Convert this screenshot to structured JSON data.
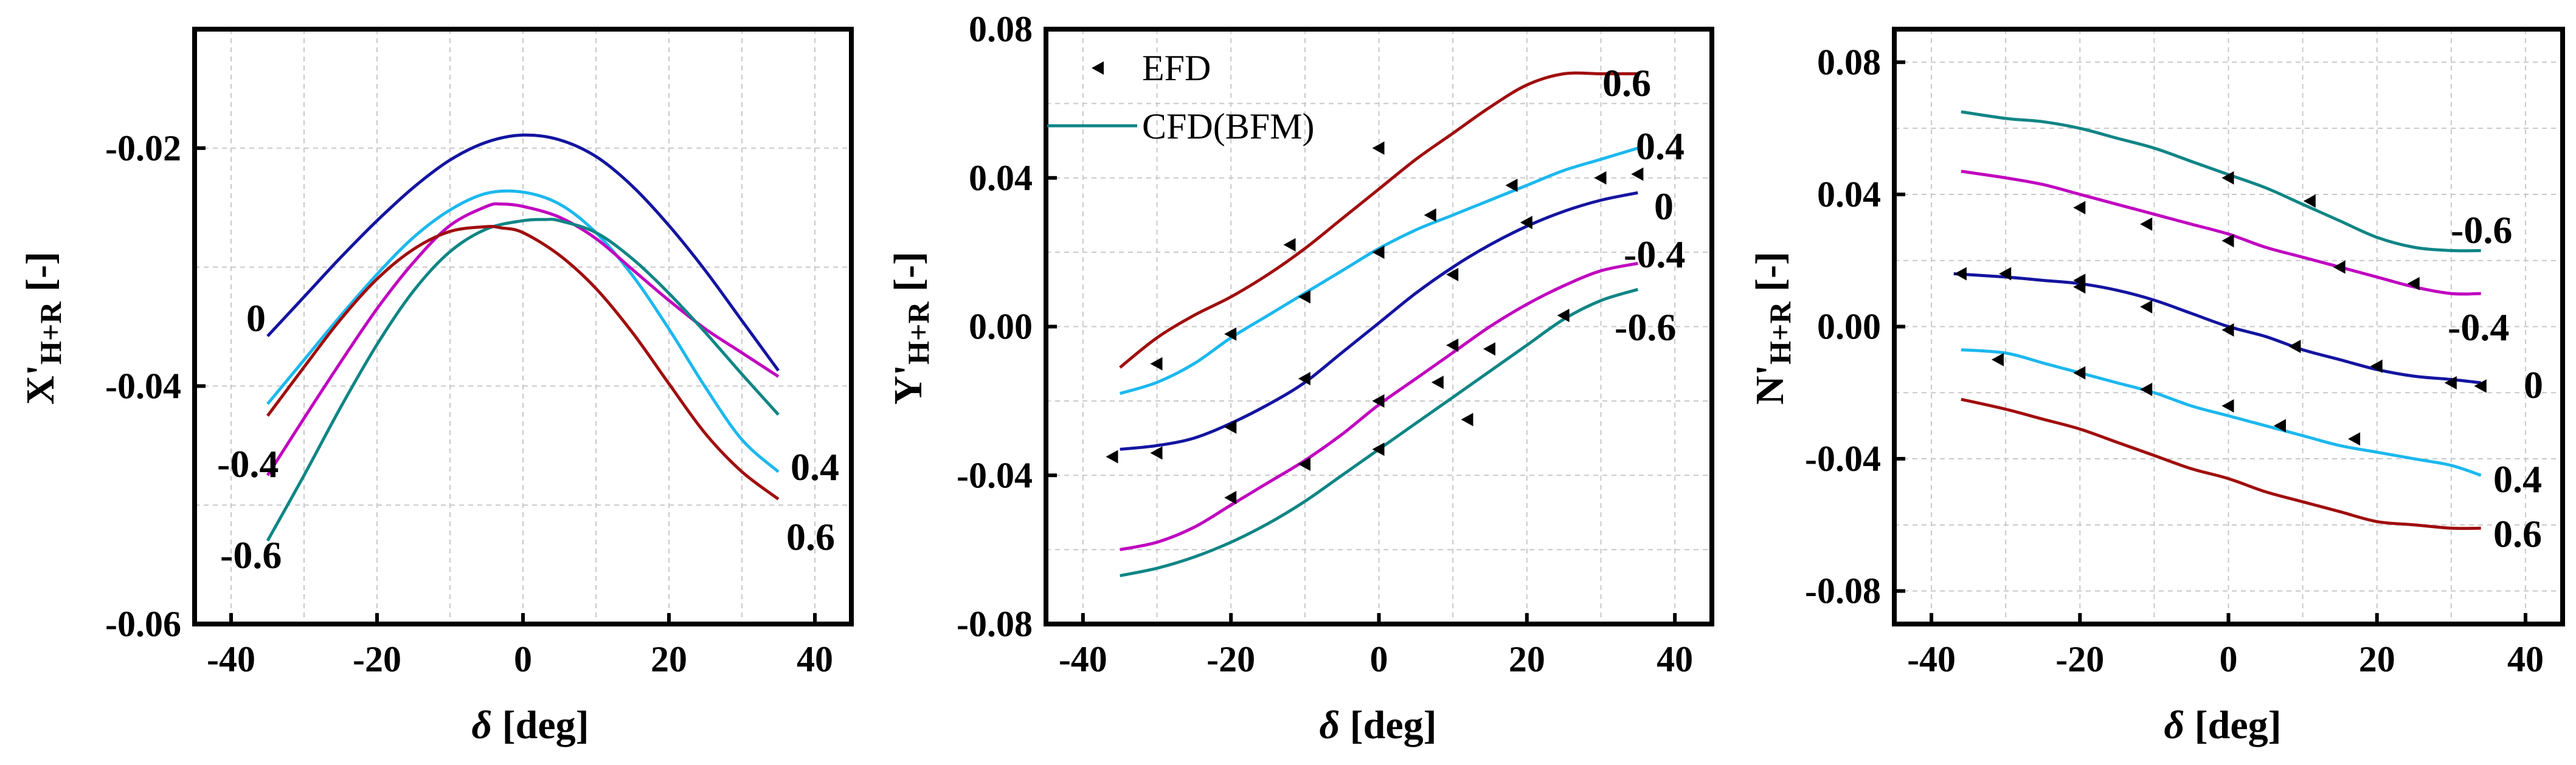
{
  "chart_data": [
    {
      "type": "line",
      "panel": "left",
      "ylabel_main": "X'",
      "ylabel_sub": "H+R",
      "ylabel_unit": " [-]",
      "xlabel_symbol": "δ",
      "xlabel_unit": " [deg]",
      "xlim": [
        -45,
        45
      ],
      "ylim": [
        -0.06,
        -0.01
      ],
      "xticks": [
        -40,
        -20,
        0,
        20,
        40
      ],
      "xtick_labels": [
        "-40",
        "-20",
        "0",
        "20",
        "40"
      ],
      "yticks": [
        -0.06,
        -0.04,
        -0.02
      ],
      "ytick_labels": [
        "-0.06",
        "-0.04",
        "-0.02"
      ],
      "series": [
        {
          "name": "0",
          "color": "#1414a0",
          "x": [
            -35,
            -30,
            -25,
            -20,
            -15,
            -10,
            -5,
            0,
            5,
            10,
            15,
            20,
            25,
            30,
            35
          ],
          "y": [
            -0.0358,
            -0.0325,
            -0.0292,
            -0.0261,
            -0.0233,
            -0.021,
            -0.0195,
            -0.0189,
            -0.0193,
            -0.0207,
            -0.0232,
            -0.0265,
            -0.0303,
            -0.0345,
            -0.0387
          ]
        },
        {
          "name": "0.4",
          "color": "#1cb8ee",
          "x": [
            -35,
            -30,
            -25,
            -20,
            -15,
            -10,
            -5,
            0,
            5,
            10,
            15,
            20,
            25,
            30,
            35
          ],
          "y": [
            -0.0415,
            -0.0378,
            -0.0341,
            -0.0306,
            -0.0275,
            -0.0252,
            -0.0238,
            -0.0237,
            -0.0247,
            -0.0271,
            -0.0307,
            -0.0352,
            -0.0401,
            -0.0445,
            -0.0472
          ]
        },
        {
          "name": "-0.4",
          "color": "#c000c0",
          "x": [
            -35,
            -30,
            -25,
            -20,
            -15,
            -10,
            -5,
            -3,
            0,
            5,
            10,
            15,
            20,
            25,
            30,
            35
          ],
          "y": [
            -0.0475,
            -0.0427,
            -0.038,
            -0.0335,
            -0.0296,
            -0.0265,
            -0.0249,
            -0.0247,
            -0.0249,
            -0.0258,
            -0.0276,
            -0.0302,
            -0.0328,
            -0.0352,
            -0.0372,
            -0.0392
          ]
        },
        {
          "name": "-0.6",
          "color": "#108585",
          "x": [
            -35,
            -30,
            -25,
            -20,
            -15,
            -10,
            -5,
            0,
            3,
            5,
            10,
            15,
            20,
            25,
            30,
            35
          ],
          "y": [
            -0.053,
            -0.0475,
            -0.0418,
            -0.0365,
            -0.032,
            -0.0287,
            -0.0268,
            -0.0261,
            -0.026,
            -0.0261,
            -0.0271,
            -0.0293,
            -0.0322,
            -0.0355,
            -0.039,
            -0.0424
          ]
        },
        {
          "name": "0.6",
          "color": "#a00e0e",
          "x": [
            -35,
            -30,
            -25,
            -20,
            -15,
            -10,
            -5,
            -3,
            0,
            5,
            10,
            15,
            20,
            25,
            30,
            35
          ],
          "y": [
            -0.0425,
            -0.0384,
            -0.0344,
            -0.031,
            -0.0285,
            -0.027,
            -0.0266,
            -0.0267,
            -0.0271,
            -0.029,
            -0.0318,
            -0.0355,
            -0.0398,
            -0.044,
            -0.0472,
            -0.0495
          ]
        }
      ],
      "annotations": [
        "0",
        "-0.4",
        "-0.6",
        "0.4",
        "0.6"
      ]
    },
    {
      "type": "line",
      "panel": "middle",
      "ylabel_main": "Y'",
      "ylabel_sub": "H+R",
      "ylabel_unit": " [-]",
      "xlabel_symbol": "δ",
      "xlabel_unit": " [deg]",
      "xlim": [
        -45,
        45
      ],
      "ylim": [
        -0.08,
        0.08
      ],
      "xticks": [
        -40,
        -20,
        0,
        20,
        40
      ],
      "xtick_labels": [
        "-40",
        "-20",
        "0",
        "20",
        "40"
      ],
      "yticks": [
        -0.08,
        -0.04,
        0.0,
        0.04,
        0.08
      ],
      "ytick_labels": [
        "-0.08",
        "-0.04",
        "0.00",
        "0.04",
        "0.08"
      ],
      "legend": {
        "location": "top-left",
        "entries": [
          "EFD",
          "CFD(BFM)"
        ]
      },
      "series": [
        {
          "name": "0.6",
          "color": "#a00e0e",
          "x": [
            -35,
            -30,
            -25,
            -20,
            -15,
            -10,
            -5,
            0,
            5,
            10,
            15,
            20,
            25,
            30,
            35
          ],
          "y": [
            -0.011,
            -0.003,
            0.003,
            0.008,
            0.014,
            0.021,
            0.029,
            0.037,
            0.045,
            0.052,
            0.059,
            0.065,
            0.068,
            0.068,
            0.068
          ]
        },
        {
          "name": "0.4",
          "color": "#1cb8ee",
          "x": [
            -35,
            -30,
            -25,
            -20,
            -15,
            -10,
            -5,
            0,
            5,
            10,
            15,
            20,
            25,
            30,
            35
          ],
          "y": [
            -0.018,
            -0.015,
            -0.01,
            -0.003,
            0.003,
            0.009,
            0.015,
            0.021,
            0.026,
            0.03,
            0.034,
            0.038,
            0.042,
            0.045,
            0.048
          ]
        },
        {
          "name": "0",
          "color": "#1414a0",
          "x": [
            -35,
            -30,
            -25,
            -20,
            -15,
            -10,
            -5,
            0,
            5,
            10,
            15,
            20,
            25,
            30,
            35
          ],
          "y": [
            -0.033,
            -0.032,
            -0.03,
            -0.026,
            -0.021,
            -0.015,
            -0.007,
            0.001,
            0.009,
            0.016,
            0.022,
            0.027,
            0.031,
            0.034,
            0.036
          ]
        },
        {
          "name": "-0.4",
          "color": "#c000c0",
          "x": [
            -35,
            -30,
            -25,
            -20,
            -15,
            -10,
            -5,
            0,
            5,
            10,
            15,
            20,
            25,
            30,
            35
          ],
          "y": [
            -0.06,
            -0.058,
            -0.054,
            -0.048,
            -0.042,
            -0.036,
            -0.029,
            -0.021,
            -0.014,
            -0.007,
            0.0,
            0.006,
            0.011,
            0.015,
            0.017
          ]
        },
        {
          "name": "-0.6",
          "color": "#108585",
          "x": [
            -35,
            -30,
            -25,
            -20,
            -15,
            -10,
            -5,
            0,
            5,
            10,
            15,
            20,
            25,
            30,
            35
          ],
          "y": [
            -0.067,
            -0.065,
            -0.062,
            -0.058,
            -0.053,
            -0.047,
            -0.04,
            -0.033,
            -0.026,
            -0.019,
            -0.012,
            -0.005,
            0.002,
            0.007,
            0.01
          ]
        }
      ],
      "efd_points": {
        "x": [
          -36,
          -30,
          -20,
          -12,
          -10,
          0,
          7,
          18,
          30,
          35,
          -20,
          -10,
          0,
          10,
          20,
          -30,
          -20,
          -10,
          0,
          10,
          25,
          -20,
          -10,
          0,
          8,
          15,
          0,
          12
        ],
        "y": [
          -0.035,
          -0.034,
          -0.027,
          0.022,
          0.008,
          0.048,
          0.03,
          0.038,
          0.04,
          0.041,
          -0.002,
          -0.014,
          0.02,
          0.014,
          0.028,
          -0.01,
          -0.046,
          -0.037,
          -0.02,
          -0.005,
          0.003,
          -0.027,
          -0.037,
          -0.033,
          -0.015,
          -0.006,
          -0.02,
          -0.025
        ]
      },
      "annotations": [
        "0.6",
        "0.4",
        "0",
        "-0.4",
        "-0.6"
      ]
    },
    {
      "type": "line",
      "panel": "right",
      "ylabel_main": "N'",
      "ylabel_sub": "H+R",
      "ylabel_unit": " [-]",
      "xlabel_symbol": "δ",
      "xlabel_unit": " [deg]",
      "xlim": [
        -45,
        45
      ],
      "ylim": [
        -0.09,
        0.09
      ],
      "xticks": [
        -40,
        -20,
        0,
        20,
        40
      ],
      "xtick_labels": [
        "-40",
        "-20",
        "0",
        "20",
        "40"
      ],
      "yticks": [
        -0.08,
        -0.04,
        0.0,
        0.04,
        0.08
      ],
      "ytick_labels": [
        "-0.08",
        "-0.04",
        "0.00",
        "0.04",
        "0.08"
      ],
      "series": [
        {
          "name": "-0.6",
          "color": "#108585",
          "x": [
            -36,
            -30,
            -25,
            -20,
            -15,
            -10,
            -5,
            0,
            5,
            10,
            15,
            20,
            25,
            30,
            34
          ],
          "y": [
            0.065,
            0.063,
            0.062,
            0.06,
            0.057,
            0.054,
            0.05,
            0.046,
            0.042,
            0.037,
            0.032,
            0.027,
            0.024,
            0.023,
            0.023
          ]
        },
        {
          "name": "-0.4",
          "color": "#c000c0",
          "x": [
            -36,
            -30,
            -25,
            -20,
            -15,
            -10,
            -5,
            0,
            5,
            10,
            15,
            20,
            25,
            30,
            34
          ],
          "y": [
            0.047,
            0.045,
            0.043,
            0.04,
            0.037,
            0.034,
            0.031,
            0.028,
            0.024,
            0.021,
            0.018,
            0.015,
            0.012,
            0.01,
            0.01
          ]
        },
        {
          "name": "0",
          "color": "#1414a0",
          "x": [
            -37,
            -30,
            -25,
            -20,
            -15,
            -10,
            -5,
            0,
            5,
            10,
            15,
            20,
            25,
            30,
            34
          ],
          "y": [
            0.016,
            0.015,
            0.014,
            0.013,
            0.011,
            0.008,
            0.004,
            0.0,
            -0.003,
            -0.007,
            -0.01,
            -0.013,
            -0.015,
            -0.016,
            -0.017
          ]
        },
        {
          "name": "0.4",
          "color": "#1cb8ee",
          "x": [
            -36,
            -30,
            -25,
            -20,
            -15,
            -10,
            -5,
            0,
            5,
            10,
            15,
            20,
            25,
            30,
            34
          ],
          "y": [
            -0.007,
            -0.008,
            -0.011,
            -0.014,
            -0.017,
            -0.02,
            -0.024,
            -0.027,
            -0.03,
            -0.033,
            -0.036,
            -0.038,
            -0.04,
            -0.042,
            -0.045
          ]
        },
        {
          "name": "0.6",
          "color": "#a00e0e",
          "x": [
            -36,
            -30,
            -25,
            -20,
            -15,
            -10,
            -5,
            0,
            5,
            10,
            15,
            20,
            25,
            30,
            34
          ],
          "y": [
            -0.022,
            -0.025,
            -0.028,
            -0.031,
            -0.035,
            -0.039,
            -0.043,
            -0.046,
            -0.05,
            -0.053,
            -0.056,
            -0.059,
            -0.06,
            -0.061,
            -0.061
          ]
        }
      ],
      "efd_points": {
        "x": [
          -36,
          -31,
          -20,
          -11,
          0,
          11,
          25,
          -20,
          -11,
          0,
          9,
          20,
          30,
          -30,
          -20,
          -11,
          0,
          7,
          17,
          34,
          34,
          0,
          -20,
          15
        ],
        "y": [
          0.016,
          -0.01,
          0.036,
          0.031,
          0.045,
          0.038,
          0.013,
          0.012,
          0.006,
          -0.001,
          -0.006,
          -0.012,
          -0.017,
          0.016,
          -0.014,
          -0.019,
          -0.024,
          -0.03,
          -0.034,
          -0.018,
          -0.018,
          0.026,
          0.014,
          0.018
        ]
      },
      "annotations": [
        "-0.6",
        "-0.4",
        "0",
        "0.4",
        "0.6"
      ]
    }
  ]
}
